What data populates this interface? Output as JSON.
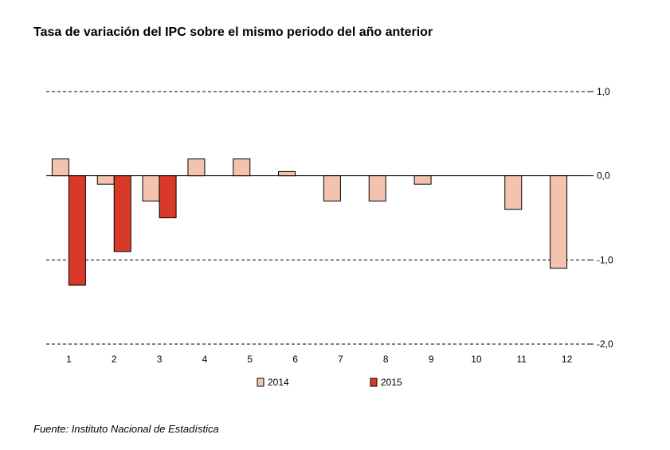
{
  "title": "Tasa de variación del IPC sobre el mismo periodo del año anterior",
  "source": "Fuente: Instituto Nacional de Estadística",
  "chart_data": {
    "type": "bar",
    "title": "Tasa de variación del IPC sobre el mismo periodo del año anterior",
    "xlabel": "",
    "ylabel": "",
    "categories": [
      "1",
      "2",
      "3",
      "4",
      "5",
      "6",
      "7",
      "8",
      "9",
      "10",
      "11",
      "12"
    ],
    "series": [
      {
        "name": "2014",
        "color": "#f4c3b0",
        "values": [
          0.2,
          -0.1,
          -0.3,
          0.2,
          0.2,
          0.05,
          -0.3,
          -0.3,
          -0.1,
          0.0,
          -0.4,
          -1.1
        ]
      },
      {
        "name": "2015",
        "color": "#d93a28",
        "values": [
          -1.3,
          -0.9,
          -0.5,
          null,
          null,
          null,
          null,
          null,
          null,
          null,
          null,
          null
        ]
      }
    ],
    "ylim": [
      -2.0,
      1.0
    ],
    "yticks": [
      1.0,
      0.0,
      -1.0,
      -2.0
    ],
    "ytick_labels": [
      "1,0",
      "0,0",
      "-1,0",
      "-2,0"
    ],
    "yaxis_side": "right",
    "grid": "dashed major lines",
    "legend_position": "bottom"
  }
}
